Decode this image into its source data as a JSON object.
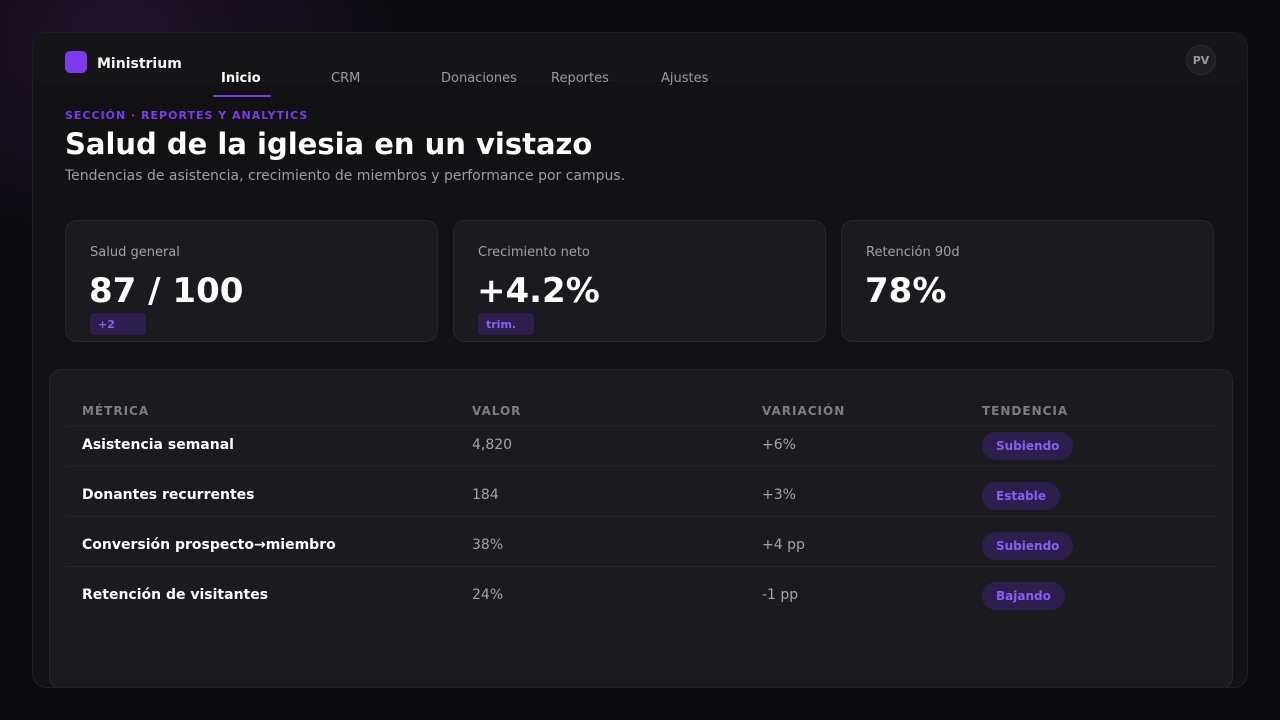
{
  "app": {
    "name": "Ministrium"
  },
  "nav": {
    "items": [
      {
        "label": "Inicio",
        "active": true
      },
      {
        "label": "CRM",
        "active": false
      },
      {
        "label": "Donaciones",
        "active": false
      },
      {
        "label": "Reportes",
        "active": false
      },
      {
        "label": "Ajustes",
        "active": false
      }
    ]
  },
  "user": {
    "initials": "PV"
  },
  "header": {
    "section": "SECCIÓN · REPORTES Y ANALYTICS",
    "title": "Salud de la iglesia en un vistazo",
    "subtitle": "Tendencias de asistencia, crecimiento de miembros y performance por campus."
  },
  "kpis": [
    {
      "label": "Salud general",
      "value": "87 / 100",
      "badge": "+2"
    },
    {
      "label": "Crecimiento neto",
      "value": "+4.2%",
      "badge": "trim."
    },
    {
      "label": "Retención 90d",
      "value": "78%",
      "badge": ""
    }
  ],
  "table": {
    "headers": [
      "MÉTRICA",
      "VALOR",
      "VARIACIÓN",
      "TENDENCIA"
    ],
    "rows": [
      {
        "metric": "Asistencia semanal",
        "value": "4,820",
        "change": "+6%",
        "trend": "Subiendo"
      },
      {
        "metric": "Donantes recurrentes",
        "value": "184",
        "change": "+3%",
        "trend": "Estable"
      },
      {
        "metric": "Conversión prospecto→miembro",
        "value": "38%",
        "change": "+4 pp",
        "trend": "Subiendo"
      },
      {
        "metric": "Retención de visitantes",
        "value": "24%",
        "change": "-1 pp",
        "trend": "Bajando"
      }
    ]
  },
  "colors": {
    "accent": "#7c3aed",
    "background": "#0b0b0e",
    "panel": "#1b1b1f"
  }
}
